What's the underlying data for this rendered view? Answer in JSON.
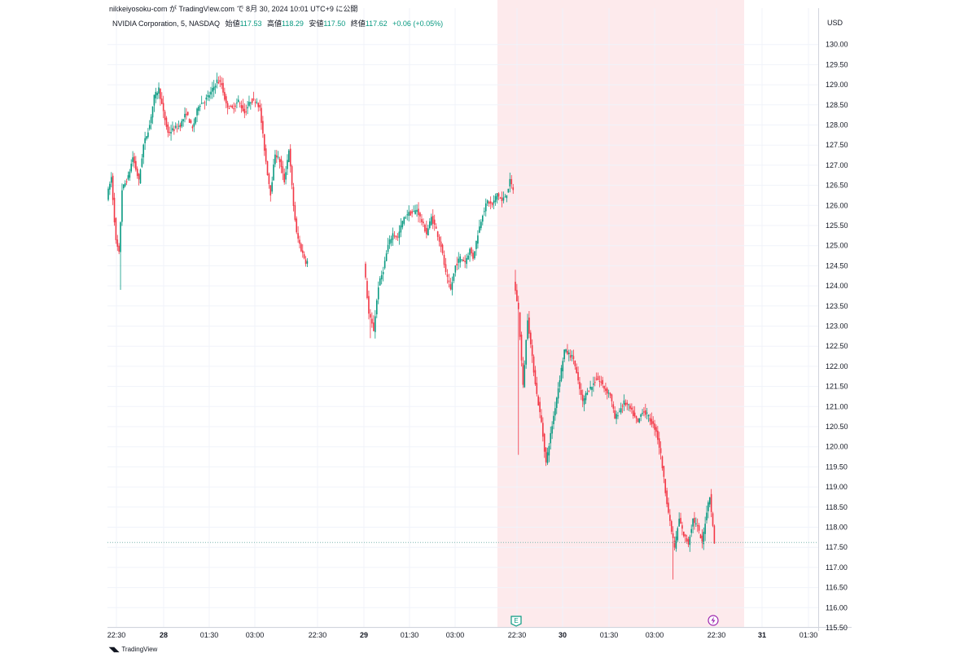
{
  "publish_note": "nikkeiyosoku-com が TradingView.com で 8月 30, 2024 10:01 UTC+9 に公開",
  "legend": {
    "symbol": "NVIDIA Corporation, 5, NASDAQ",
    "open_label": "始値",
    "open": "117.53",
    "high_label": "高値",
    "high": "118.29",
    "low_label": "安値",
    "low": "117.50",
    "close_label": "終値",
    "close": "117.62",
    "change": "+0.06 (+0.05%)"
  },
  "currency": "USD",
  "logo_text": "TradingView",
  "event_markers": [
    {
      "icon": "earnings-icon",
      "label": "E",
      "x": "22:30 (29)"
    },
    {
      "icon": "lightning-icon",
      "x": "22:30 (30)"
    }
  ],
  "colors": {
    "up": "#089981",
    "down": "#f23645",
    "shade": "#fdeaec",
    "grid": "#f0f3fa",
    "last_price_line": "#7fb7b0"
  },
  "chart_data": {
    "type": "candlestick",
    "interval": "5",
    "y_ticks": [
      "115.50",
      "116.00",
      "116.50",
      "117.00",
      "117.50",
      "118.00",
      "118.50",
      "119.00",
      "119.50",
      "120.00",
      "120.50",
      "121.00",
      "121.50",
      "122.00",
      "122.50",
      "123.00",
      "123.50",
      "124.00",
      "124.50",
      "125.00",
      "125.50",
      "126.00",
      "126.50",
      "127.00",
      "127.50",
      "128.00",
      "128.50",
      "129.00",
      "129.50",
      "130.00"
    ],
    "ylim": [
      115.5,
      130.2
    ],
    "x_ticks": [
      "22:30",
      "28",
      "01:30",
      "03:00",
      "22:30",
      "29",
      "01:30",
      "03:00",
      "22:30",
      "30",
      "01:30",
      "03:00",
      "22:30",
      "31",
      "01:30"
    ],
    "last_price": 117.62,
    "grid": true,
    "sessions": [
      {
        "day": "27-28",
        "anchors": [
          [
            0,
            126.2
          ],
          [
            3,
            126.7
          ],
          [
            6,
            125.1
          ],
          [
            8,
            124.8
          ],
          [
            10,
            126.4
          ],
          [
            14,
            126.7
          ],
          [
            17,
            127.2
          ],
          [
            21,
            126.6
          ],
          [
            24,
            127.5
          ],
          [
            28,
            128.0
          ],
          [
            31,
            128.7
          ],
          [
            34,
            128.9
          ],
          [
            37,
            128.3
          ],
          [
            40,
            127.8
          ],
          [
            44,
            127.9
          ],
          [
            48,
            128.0
          ],
          [
            52,
            128.3
          ],
          [
            56,
            127.9
          ],
          [
            60,
            128.5
          ],
          [
            64,
            128.6
          ],
          [
            68,
            128.8
          ],
          [
            72,
            129.1
          ],
          [
            75,
            129.0
          ],
          [
            78,
            128.5
          ],
          [
            82,
            128.4
          ],
          [
            86,
            128.6
          ],
          [
            90,
            128.3
          ],
          [
            94,
            128.6
          ],
          [
            98,
            128.6
          ],
          [
            100,
            128.4
          ],
          [
            103,
            127.4
          ],
          [
            105,
            126.8
          ],
          [
            107,
            126.3
          ],
          [
            110,
            127.3
          ],
          [
            113,
            127.1
          ],
          [
            116,
            126.6
          ],
          [
            119,
            127.4
          ],
          [
            122,
            126.0
          ],
          [
            124,
            125.3
          ],
          [
            127,
            124.9
          ],
          [
            130,
            124.6
          ]
        ]
      },
      {
        "day": "28-29",
        "anchors": [
          [
            0,
            124.6
          ],
          [
            3,
            123.3
          ],
          [
            6,
            122.9
          ],
          [
            9,
            124.0
          ],
          [
            12,
            124.4
          ],
          [
            15,
            125.0
          ],
          [
            18,
            125.3
          ],
          [
            21,
            125.2
          ],
          [
            24,
            125.6
          ],
          [
            27,
            125.8
          ],
          [
            30,
            125.8
          ],
          [
            33,
            125.9
          ],
          [
            36,
            125.6
          ],
          [
            39,
            125.3
          ],
          [
            42,
            125.7
          ],
          [
            45,
            125.4
          ],
          [
            48,
            125.0
          ],
          [
            51,
            124.3
          ],
          [
            54,
            123.9
          ],
          [
            57,
            124.5
          ],
          [
            60,
            124.7
          ],
          [
            63,
            124.6
          ],
          [
            66,
            124.9
          ],
          [
            68,
            124.7
          ],
          [
            71,
            125.3
          ],
          [
            74,
            125.8
          ],
          [
            77,
            126.1
          ],
          [
            80,
            126.0
          ],
          [
            83,
            126.3
          ],
          [
            86,
            126.1
          ],
          [
            89,
            126.3
          ],
          [
            91,
            126.6
          ],
          [
            93,
            126.4
          ]
        ]
      },
      {
        "day": "29-30",
        "anchors": [
          [
            0,
            124.1
          ],
          [
            3,
            123.4
          ],
          [
            6,
            121.5
          ],
          [
            9,
            123.2
          ],
          [
            12,
            122.2
          ],
          [
            15,
            121.3
          ],
          [
            18,
            120.6
          ],
          [
            21,
            119.6
          ],
          [
            24,
            120.3
          ],
          [
            27,
            121.0
          ],
          [
            30,
            121.7
          ],
          [
            33,
            122.4
          ],
          [
            36,
            122.3
          ],
          [
            39,
            122.2
          ],
          [
            42,
            121.6
          ],
          [
            45,
            121.1
          ],
          [
            48,
            121.4
          ],
          [
            51,
            121.5
          ],
          [
            54,
            121.7
          ],
          [
            57,
            121.6
          ],
          [
            60,
            121.4
          ],
          [
            63,
            121.3
          ],
          [
            66,
            120.7
          ],
          [
            69,
            120.9
          ],
          [
            72,
            121.1
          ],
          [
            75,
            121.0
          ],
          [
            78,
            120.8
          ],
          [
            81,
            120.6
          ],
          [
            84,
            120.9
          ],
          [
            87,
            120.8
          ],
          [
            90,
            120.6
          ],
          [
            93,
            120.4
          ],
          [
            96,
            119.8
          ],
          [
            99,
            118.9
          ],
          [
            102,
            118.1
          ],
          [
            105,
            117.5
          ],
          [
            108,
            118.2
          ],
          [
            111,
            117.8
          ],
          [
            114,
            117.6
          ],
          [
            117,
            118.2
          ],
          [
            120,
            118.0
          ],
          [
            123,
            117.6
          ],
          [
            126,
            118.4
          ],
          [
            128,
            118.8
          ],
          [
            131,
            117.6
          ]
        ]
      }
    ]
  }
}
